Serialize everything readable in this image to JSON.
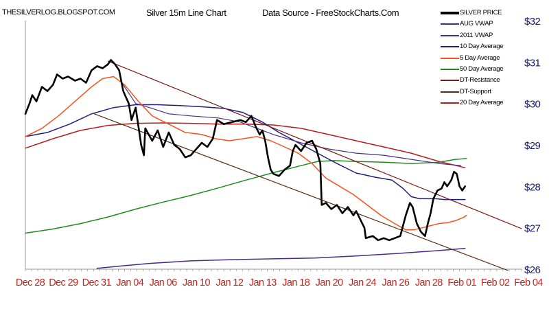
{
  "header": {
    "site": "THESILVERLOG.BLOGSPOT.COM",
    "title": "Silver 15m Line Chart",
    "source": "Data Source - FreeStockCharts.Com"
  },
  "colors": {
    "price": "#000000",
    "aug_vwap": "#4a2d80",
    "vwap_2011": "#4b2a86",
    "ma10": "#1f1f78",
    "ma5": "#f0541e",
    "ma50": "#1f8a1f",
    "dt_resistance": "#7a1a1a",
    "dt_support": "#5a2a12",
    "ma20": "#b51c1c",
    "axis_text": "#1a1a6a",
    "date_text": "#c0251f"
  },
  "chart_data": {
    "type": "line",
    "y_axis": {
      "side": "right",
      "ylim": [
        26,
        32
      ],
      "ticks": [
        "$26",
        "$27",
        "$28",
        "$29",
        "$30",
        "$31",
        "$32"
      ],
      "tick_values": [
        26,
        27,
        28,
        29,
        30,
        31,
        32
      ]
    },
    "x_axis": {
      "xlim": [
        0,
        18
      ],
      "ticks": [
        "Dec 28",
        "Dec 29",
        "Dec 31",
        "Jan 04",
        "Jan 06",
        "Jan 10",
        "Jan 12",
        "Jan 13",
        "Jan 18",
        "Jan 20",
        "Jan 24",
        "Jan 26",
        "Jan 28",
        "Feb 01",
        "Feb 02",
        "Feb 04"
      ]
    },
    "grid": false,
    "legend": "right",
    "series": [
      {
        "key": "price",
        "name": "SILVER PRICE",
        "color_key": "price",
        "width": 2.6,
        "points": [
          [
            0,
            29.75
          ],
          [
            0.15,
            30
          ],
          [
            0.25,
            30.2
          ],
          [
            0.4,
            30.05
          ],
          [
            0.6,
            30.4
          ],
          [
            0.8,
            30.3
          ],
          [
            1,
            30.45
          ],
          [
            1.15,
            30.7
          ],
          [
            1.35,
            30.6
          ],
          [
            1.55,
            30.65
          ],
          [
            1.8,
            30.55
          ],
          [
            2,
            30.6
          ],
          [
            2.2,
            30.5
          ],
          [
            2.4,
            30.8
          ],
          [
            2.6,
            30.9
          ],
          [
            2.8,
            30.85
          ],
          [
            3,
            30.95
          ],
          [
            3.1,
            31.05
          ],
          [
            3.25,
            30.95
          ],
          [
            3.4,
            30.8
          ],
          [
            3.55,
            30.3
          ],
          [
            3.75,
            30
          ],
          [
            3.85,
            29.6
          ],
          [
            4,
            29.9
          ],
          [
            4.1,
            29.45
          ],
          [
            4.2,
            29.0
          ],
          [
            4.3,
            28.75
          ],
          [
            4.35,
            29.4
          ],
          [
            4.6,
            29.1
          ],
          [
            4.8,
            29.35
          ],
          [
            5.0,
            28.95
          ],
          [
            5.2,
            29.3
          ],
          [
            5.4,
            29.0
          ],
          [
            5.6,
            28.9
          ],
          [
            5.8,
            28.7
          ],
          [
            6.0,
            28.75
          ],
          [
            6.2,
            28.9
          ],
          [
            6.4,
            29.05
          ],
          [
            6.6,
            28.95
          ],
          [
            6.8,
            29.15
          ],
          [
            6.95,
            29.6
          ],
          [
            7.2,
            29.5
          ],
          [
            7.5,
            29.55
          ],
          [
            7.8,
            29.6
          ],
          [
            8.0,
            29.55
          ],
          [
            8.2,
            29.7
          ],
          [
            8.35,
            29.45
          ],
          [
            8.5,
            29.25
          ],
          [
            8.6,
            29.35
          ],
          [
            8.7,
            29.1
          ],
          [
            8.8,
            28.7
          ],
          [
            8.9,
            28.4
          ],
          [
            9.0,
            28.3
          ],
          [
            9.2,
            28.25
          ],
          [
            9.4,
            28.4
          ],
          [
            9.6,
            28.5
          ],
          [
            9.7,
            28.85
          ],
          [
            9.8,
            29.0
          ],
          [
            10.0,
            28.85
          ],
          [
            10.2,
            29.05
          ],
          [
            10.4,
            29.1
          ],
          [
            10.55,
            28.9
          ],
          [
            10.7,
            28.55
          ],
          [
            10.75,
            27.55
          ],
          [
            10.9,
            27.6
          ],
          [
            11.1,
            27.45
          ],
          [
            11.3,
            27.55
          ],
          [
            11.5,
            27.35
          ],
          [
            11.7,
            27.5
          ],
          [
            11.9,
            27.3
          ],
          [
            12.0,
            27.4
          ],
          [
            12.15,
            27.2
          ],
          [
            12.3,
            27.0
          ],
          [
            12.35,
            26.75
          ],
          [
            12.6,
            26.8
          ],
          [
            12.8,
            26.7
          ],
          [
            13.0,
            26.75
          ],
          [
            13.2,
            26.7
          ],
          [
            13.4,
            26.75
          ],
          [
            13.6,
            26.8
          ],
          [
            13.7,
            27.05
          ],
          [
            13.8,
            27.3
          ],
          [
            13.95,
            27.6
          ],
          [
            14.05,
            27.5
          ],
          [
            14.2,
            27.1
          ],
          [
            14.35,
            26.9
          ],
          [
            14.5,
            26.8
          ],
          [
            14.6,
            27.1
          ],
          [
            14.7,
            27.35
          ],
          [
            14.8,
            27.7
          ],
          [
            14.95,
            27.9
          ],
          [
            15.1,
            27.95
          ],
          [
            15.2,
            28.1
          ],
          [
            15.3,
            28.0
          ],
          [
            15.45,
            28.15
          ],
          [
            15.55,
            28.35
          ],
          [
            15.65,
            28.3
          ],
          [
            15.75,
            28.0
          ],
          [
            15.85,
            27.9
          ],
          [
            15.95,
            28.0
          ]
        ]
      },
      {
        "key": "aug_vwap",
        "name": "AUG VWAP",
        "color_key": "aug_vwap",
        "width": 1.2,
        "points": [
          [
            3.5,
            30.5
          ],
          [
            3.8,
            30.2
          ],
          [
            4.0,
            30.0
          ],
          [
            4.5,
            29.9
          ],
          [
            5.2,
            29.75
          ],
          [
            6.0,
            29.7
          ],
          [
            7.0,
            29.65
          ],
          [
            7.8,
            29.55
          ],
          [
            8.4,
            29.4
          ],
          [
            9.0,
            29.25
          ],
          [
            10.0,
            29.05
          ],
          [
            11.0,
            28.9
          ],
          [
            12.0,
            28.8
          ],
          [
            13.0,
            28.75
          ],
          [
            14.0,
            28.65
          ],
          [
            15.0,
            28.55
          ],
          [
            15.8,
            28.5
          ]
        ]
      },
      {
        "key": "vwap_2011",
        "name": "2011 VWAP",
        "color_key": "vwap_2011",
        "width": 1.5,
        "points": [
          [
            2.6,
            26.02
          ],
          [
            3.5,
            26.08
          ],
          [
            4.5,
            26.14
          ],
          [
            6.0,
            26.2
          ],
          [
            7.5,
            26.23
          ],
          [
            9.0,
            26.25
          ],
          [
            10.5,
            26.27
          ],
          [
            12.0,
            26.32
          ],
          [
            13.5,
            26.38
          ],
          [
            15.0,
            26.45
          ],
          [
            15.95,
            26.5
          ]
        ]
      },
      {
        "key": "ma10",
        "name": "10 Day Average",
        "color_key": "ma10",
        "width": 1.5,
        "points": [
          [
            0,
            29.2
          ],
          [
            0.8,
            29.3
          ],
          [
            1.6,
            29.5
          ],
          [
            2.4,
            29.75
          ],
          [
            3.2,
            29.9
          ],
          [
            4.0,
            29.97
          ],
          [
            4.8,
            29.97
          ],
          [
            5.6,
            29.95
          ],
          [
            6.4,
            29.92
          ],
          [
            7.2,
            29.88
          ],
          [
            7.9,
            29.78
          ],
          [
            8.6,
            29.55
          ],
          [
            9.2,
            29.3
          ],
          [
            9.9,
            29.05
          ],
          [
            10.6,
            28.8
          ],
          [
            11.3,
            28.55
          ],
          [
            12.0,
            28.32
          ],
          [
            12.7,
            28.22
          ],
          [
            13.3,
            28.15
          ],
          [
            13.7,
            27.95
          ],
          [
            14.0,
            27.75
          ],
          [
            14.3,
            27.7
          ],
          [
            14.6,
            27.7
          ],
          [
            14.9,
            27.7
          ],
          [
            15.2,
            27.68
          ],
          [
            15.95,
            27.68
          ]
        ]
      },
      {
        "key": "ma5",
        "name": "5 Day Average",
        "color_key": "ma5",
        "width": 1.5,
        "points": [
          [
            0,
            29.2
          ],
          [
            0.6,
            29.4
          ],
          [
            1.2,
            29.7
          ],
          [
            1.8,
            30.05
          ],
          [
            2.4,
            30.4
          ],
          [
            2.8,
            30.6
          ],
          [
            3.2,
            30.65
          ],
          [
            3.6,
            30.45
          ],
          [
            4.1,
            30.05
          ],
          [
            4.6,
            29.7
          ],
          [
            5.2,
            29.5
          ],
          [
            5.8,
            29.3
          ],
          [
            6.4,
            29.25
          ],
          [
            6.9,
            29.15
          ],
          [
            7.4,
            29.1
          ],
          [
            7.9,
            29.15
          ],
          [
            8.4,
            29.2
          ],
          [
            8.9,
            29.1
          ],
          [
            9.4,
            28.95
          ],
          [
            9.9,
            28.8
          ],
          [
            10.4,
            28.55
          ],
          [
            10.9,
            28.2
          ],
          [
            11.4,
            28.0
          ],
          [
            11.9,
            27.8
          ],
          [
            12.4,
            27.55
          ],
          [
            12.9,
            27.3
          ],
          [
            13.4,
            27.1
          ],
          [
            13.8,
            26.95
          ],
          [
            14.1,
            26.95
          ],
          [
            14.4,
            27.0
          ],
          [
            14.7,
            27.05
          ],
          [
            15.0,
            27.1
          ],
          [
            15.3,
            27.12
          ],
          [
            15.6,
            27.17
          ],
          [
            15.9,
            27.25
          ],
          [
            16.0,
            27.3
          ]
        ]
      },
      {
        "key": "ma50",
        "name": "50 Day Average",
        "color_key": "ma50",
        "width": 1.5,
        "points": [
          [
            0,
            26.87
          ],
          [
            1,
            26.97
          ],
          [
            2,
            27.1
          ],
          [
            3,
            27.26
          ],
          [
            4,
            27.45
          ],
          [
            5,
            27.62
          ],
          [
            6,
            27.78
          ],
          [
            7,
            27.96
          ],
          [
            8,
            28.15
          ],
          [
            9,
            28.33
          ],
          [
            10,
            28.5
          ],
          [
            10.6,
            28.6
          ],
          [
            11.2,
            28.62
          ],
          [
            12,
            28.6
          ],
          [
            13,
            28.58
          ],
          [
            14,
            28.55
          ],
          [
            15,
            28.58
          ],
          [
            15.6,
            28.65
          ],
          [
            16,
            28.67
          ]
        ]
      },
      {
        "key": "dt_resistance",
        "name": "DT-Resistance",
        "color_key": "dt_resistance",
        "width": 1.2,
        "points": [
          [
            3.0,
            31.02
          ],
          [
            18.0,
            26.98
          ]
        ]
      },
      {
        "key": "dt_support",
        "name": "DT-Support",
        "color_key": "dt_support",
        "width": 1.2,
        "points": [
          [
            2.5,
            29.75
          ],
          [
            17.5,
            25.97
          ]
        ]
      },
      {
        "key": "ma20",
        "name": "20 Day Average",
        "color_key": "ma20",
        "width": 1.5,
        "points": [
          [
            0,
            28.92
          ],
          [
            1,
            29.15
          ],
          [
            2,
            29.35
          ],
          [
            3,
            29.47
          ],
          [
            4,
            29.52
          ],
          [
            5,
            29.53
          ],
          [
            6,
            29.52
          ],
          [
            7,
            29.5
          ],
          [
            8,
            29.5
          ],
          [
            9,
            29.48
          ],
          [
            10,
            29.4
          ],
          [
            11,
            29.25
          ],
          [
            12,
            29.1
          ],
          [
            13,
            28.95
          ],
          [
            14,
            28.8
          ],
          [
            15,
            28.6
          ],
          [
            15.95,
            28.45
          ]
        ]
      }
    ]
  }
}
